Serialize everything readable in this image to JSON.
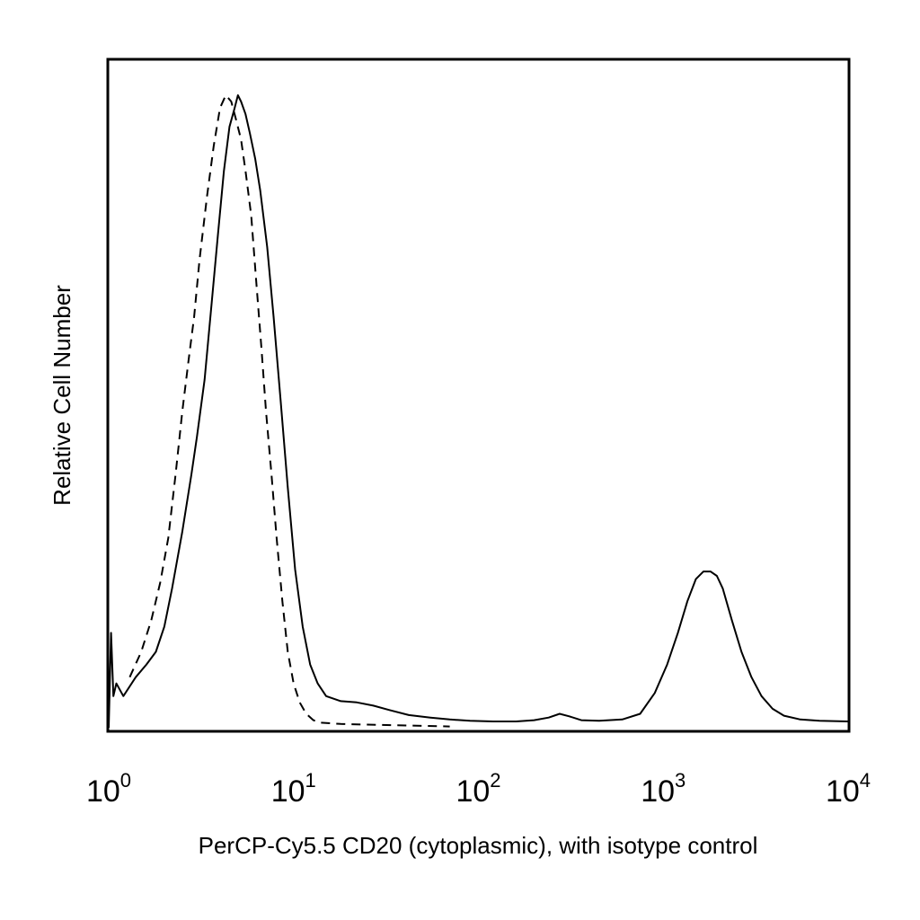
{
  "chart_data": {
    "type": "line",
    "title": "",
    "xlabel": "PerCP-Cy5.5 CD20 (cytoplasmic), with isotype control",
    "ylabel": "Relative Cell Number",
    "x_scale": "log",
    "xlim": [
      1,
      10000
    ],
    "ylim": [
      0,
      100
    ],
    "grid": false,
    "legend": "none",
    "x_ticks": [
      {
        "value": 1,
        "base": "10",
        "exp": "0"
      },
      {
        "value": 10,
        "base": "10",
        "exp": "1"
      },
      {
        "value": 100,
        "base": "10",
        "exp": "2"
      },
      {
        "value": 1000,
        "base": "10",
        "exp": "3"
      },
      {
        "value": 10000,
        "base": "10",
        "exp": "4"
      }
    ],
    "series": [
      {
        "style": "solid",
        "color": "#000000",
        "points": [
          [
            1.0,
            0
          ],
          [
            1.03,
            15
          ],
          [
            1.06,
            5
          ],
          [
            1.1,
            7
          ],
          [
            1.2,
            5
          ],
          [
            1.4,
            8
          ],
          [
            1.6,
            10
          ],
          [
            1.8,
            12
          ],
          [
            2.0,
            16
          ],
          [
            2.2,
            22
          ],
          [
            2.5,
            31
          ],
          [
            2.8,
            40
          ],
          [
            3.0,
            46
          ],
          [
            3.3,
            55
          ],
          [
            3.6,
            67
          ],
          [
            3.9,
            78
          ],
          [
            4.2,
            88
          ],
          [
            4.5,
            95
          ],
          [
            4.8,
            98
          ],
          [
            5.0,
            100
          ],
          [
            5.2,
            99
          ],
          [
            5.5,
            97
          ],
          [
            5.8,
            94
          ],
          [
            6.2,
            90
          ],
          [
            6.6,
            85
          ],
          [
            7.2,
            76
          ],
          [
            7.8,
            65
          ],
          [
            8.5,
            52
          ],
          [
            9.3,
            38
          ],
          [
            10.2,
            25
          ],
          [
            11.2,
            16
          ],
          [
            12.3,
            10
          ],
          [
            13.5,
            7
          ],
          [
            15,
            5
          ],
          [
            18,
            4.2
          ],
          [
            22,
            4
          ],
          [
            27,
            3.5
          ],
          [
            33,
            2.8
          ],
          [
            42,
            2.0
          ],
          [
            55,
            1.6
          ],
          [
            70,
            1.3
          ],
          [
            90,
            1.1
          ],
          [
            120,
            1.0
          ],
          [
            160,
            1.0
          ],
          [
            200,
            1.2
          ],
          [
            240,
            1.6
          ],
          [
            275,
            2.2
          ],
          [
            310,
            1.8
          ],
          [
            360,
            1.2
          ],
          [
            450,
            1.1
          ],
          [
            600,
            1.3
          ],
          [
            750,
            2.2
          ],
          [
            900,
            5.5
          ],
          [
            1050,
            10
          ],
          [
            1200,
            15
          ],
          [
            1350,
            20
          ],
          [
            1500,
            23.5
          ],
          [
            1650,
            24.7
          ],
          [
            1800,
            24.7
          ],
          [
            1950,
            24
          ],
          [
            2100,
            22
          ],
          [
            2350,
            17
          ],
          [
            2650,
            12
          ],
          [
            3000,
            8
          ],
          [
            3400,
            5
          ],
          [
            3900,
            3
          ],
          [
            4500,
            1.9
          ],
          [
            5500,
            1.3
          ],
          [
            7000,
            1.1
          ],
          [
            10000,
            1.0
          ]
        ]
      },
      {
        "style": "dashed",
        "color": "#000000",
        "points": [
          [
            1.3,
            8
          ],
          [
            1.5,
            12
          ],
          [
            1.7,
            17
          ],
          [
            1.9,
            23
          ],
          [
            2.1,
            30
          ],
          [
            2.3,
            40
          ],
          [
            2.5,
            50
          ],
          [
            2.7,
            58
          ],
          [
            2.9,
            65
          ],
          [
            3.1,
            74
          ],
          [
            3.4,
            84
          ],
          [
            3.7,
            92
          ],
          [
            4.0,
            98
          ],
          [
            4.3,
            100
          ],
          [
            4.6,
            99
          ],
          [
            4.9,
            96
          ],
          [
            5.2,
            93
          ],
          [
            5.5,
            88
          ],
          [
            5.9,
            81
          ],
          [
            6.3,
            70
          ],
          [
            6.7,
            60
          ],
          [
            7.1,
            50
          ],
          [
            7.6,
            40
          ],
          [
            8.1,
            30
          ],
          [
            8.7,
            20
          ],
          [
            9.3,
            12
          ],
          [
            10.0,
            7
          ],
          [
            10.8,
            4
          ],
          [
            11.7,
            2.2
          ],
          [
            12.8,
            1.2
          ],
          [
            14,
            0.8
          ],
          [
            18,
            0.6
          ],
          [
            25,
            0.5
          ],
          [
            35,
            0.4
          ],
          [
            50,
            0.3
          ],
          [
            70,
            0.2
          ]
        ]
      }
    ]
  }
}
